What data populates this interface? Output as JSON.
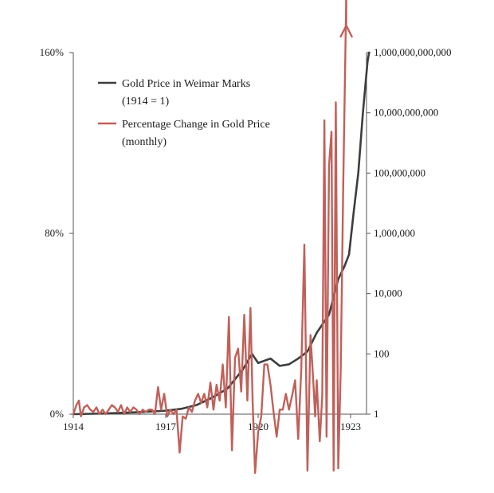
{
  "chart_data": {
    "type": "line",
    "title": "",
    "x_ticks": [
      "1914",
      "1917",
      "1920",
      "1923"
    ],
    "y_left": {
      "ticks": [
        "0%",
        "80%",
        "160%"
      ],
      "range": [
        0,
        160
      ],
      "unit": "%"
    },
    "y_right": {
      "scale": "log",
      "range": [
        1,
        1000000000000
      ],
      "ticks": [
        "1",
        "100",
        "10,000",
        "1,000,000",
        "100,000,000",
        "10,000,000,000",
        "1,000,000,000,000"
      ]
    },
    "legend": {
      "position": "top-left",
      "entries": [
        {
          "line1": "Gold Price in Weimar Marks",
          "line2": "(1914 = 1)",
          "color": "#3d3d3d"
        },
        {
          "line1": "Percentage Change in Gold Price",
          "line2": "(monthly)",
          "color": "#c1605a"
        }
      ]
    },
    "series": [
      {
        "name": "Gold Price in Weimar Marks (1914 = 1)",
        "axis": "right",
        "color": "#3d3d3d",
        "points": [
          [
            1914.0,
            1
          ],
          [
            1915.0,
            1.05
          ],
          [
            1916.0,
            1.15
          ],
          [
            1917.0,
            1.3
          ],
          [
            1917.5,
            1.5
          ],
          [
            1918.0,
            2
          ],
          [
            1918.5,
            3.5
          ],
          [
            1919.0,
            7
          ],
          [
            1919.5,
            30
          ],
          [
            1919.8,
            100
          ],
          [
            1920.0,
            50
          ],
          [
            1920.4,
            70
          ],
          [
            1920.7,
            40
          ],
          [
            1921.0,
            45
          ],
          [
            1921.3,
            70
          ],
          [
            1921.6,
            120
          ],
          [
            1921.9,
            500
          ],
          [
            1922.3,
            2000
          ],
          [
            1922.6,
            30000
          ],
          [
            1922.8,
            80000
          ],
          [
            1922.95,
            200000
          ],
          [
            1923.1,
            5000000
          ],
          [
            1923.25,
            100000000
          ],
          [
            1923.4,
            10000000000
          ],
          [
            1923.55,
            500000000000
          ],
          [
            1923.6,
            1000000000000
          ]
        ]
      },
      {
        "name": "Percentage Change in Gold Price (monthly)",
        "axis": "left",
        "color": "#c1605a",
        "points": [
          [
            1914.0,
            0
          ],
          [
            1914.1,
            4
          ],
          [
            1914.18,
            6
          ],
          [
            1914.25,
            -1
          ],
          [
            1914.35,
            3
          ],
          [
            1914.45,
            4
          ],
          [
            1914.55,
            2
          ],
          [
            1914.65,
            1
          ],
          [
            1914.75,
            3
          ],
          [
            1914.85,
            0
          ],
          [
            1914.95,
            2
          ],
          [
            1915.05,
            0
          ],
          [
            1915.15,
            2
          ],
          [
            1915.25,
            4
          ],
          [
            1915.35,
            3
          ],
          [
            1915.45,
            1
          ],
          [
            1915.55,
            4
          ],
          [
            1915.65,
            0
          ],
          [
            1915.75,
            3
          ],
          [
            1915.85,
            1
          ],
          [
            1915.95,
            3
          ],
          [
            1916.05,
            2
          ],
          [
            1916.15,
            0
          ],
          [
            1916.25,
            2
          ],
          [
            1916.35,
            1
          ],
          [
            1916.45,
            2
          ],
          [
            1916.55,
            2
          ],
          [
            1916.65,
            0
          ],
          [
            1916.75,
            12
          ],
          [
            1916.85,
            2
          ],
          [
            1916.95,
            9
          ],
          [
            1917.05,
            -1
          ],
          [
            1917.15,
            2
          ],
          [
            1917.25,
            0
          ],
          [
            1917.35,
            2
          ],
          [
            1917.45,
            -17
          ],
          [
            1917.55,
            -1
          ],
          [
            1917.65,
            -2
          ],
          [
            1917.75,
            3
          ],
          [
            1917.85,
            1
          ],
          [
            1917.95,
            6
          ],
          [
            1918.05,
            9
          ],
          [
            1918.15,
            5
          ],
          [
            1918.25,
            9
          ],
          [
            1918.35,
            3
          ],
          [
            1918.45,
            14
          ],
          [
            1918.55,
            2
          ],
          [
            1918.65,
            13
          ],
          [
            1918.75,
            6
          ],
          [
            1918.85,
            22
          ],
          [
            1918.95,
            3
          ],
          [
            1919.05,
            43
          ],
          [
            1919.15,
            -16
          ],
          [
            1919.25,
            25
          ],
          [
            1919.35,
            29
          ],
          [
            1919.45,
            10
          ],
          [
            1919.55,
            44
          ],
          [
            1919.65,
            6
          ],
          [
            1919.75,
            47
          ],
          [
            1919.82,
            6
          ],
          [
            1919.9,
            -26
          ],
          [
            1920.0,
            -8
          ],
          [
            1920.1,
            -1
          ],
          [
            1920.2,
            22
          ],
          [
            1920.3,
            22
          ],
          [
            1920.4,
            13
          ],
          [
            1920.5,
            1
          ],
          [
            1920.6,
            -10
          ],
          [
            1920.7,
            2
          ],
          [
            1920.8,
            2
          ],
          [
            1920.9,
            9
          ],
          [
            1921.0,
            2
          ],
          [
            1921.1,
            8
          ],
          [
            1921.2,
            15
          ],
          [
            1921.3,
            -11
          ],
          [
            1921.4,
            20
          ],
          [
            1921.5,
            75
          ],
          [
            1921.6,
            -25
          ],
          [
            1921.7,
            35
          ],
          [
            1921.8,
            12
          ],
          [
            1921.85,
            -1
          ],
          [
            1921.9,
            15
          ],
          [
            1922.0,
            -12
          ],
          [
            1922.08,
            8
          ],
          [
            1922.15,
            130
          ],
          [
            1922.22,
            -10
          ],
          [
            1922.3,
            110
          ],
          [
            1922.38,
            125
          ],
          [
            1922.45,
            -25
          ],
          [
            1922.52,
            138
          ],
          [
            1922.6,
            -24
          ],
          [
            1922.68,
            20
          ],
          [
            1922.76,
            100
          ],
          [
            1922.86,
            185
          ]
        ]
      }
    ]
  }
}
